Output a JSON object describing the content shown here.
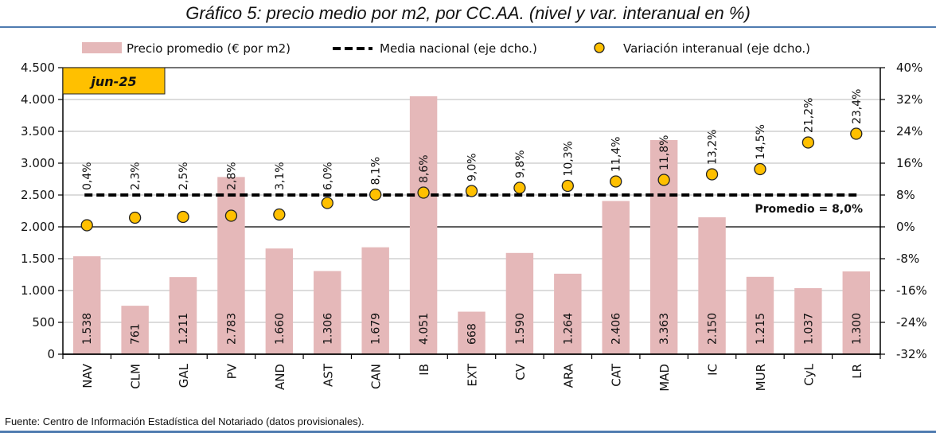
{
  "title": "Gráfico 5: precio medio por m2, por CC.AA. (nivel y var. interanual en %)",
  "source": "Fuente: Centro de Información Estadística del Notariado (datos provisionales).",
  "colors": {
    "bar": "#e5b8b9",
    "dot": "#ffc000",
    "dot_stroke": "#222222",
    "period_box": "#ffc000",
    "rule": "#4f7bb0",
    "grid": "#c8c8c8"
  },
  "chart_data": {
    "type": "bar",
    "title": "Gráfico 5: precio medio por m2, por CC.AA. (nivel y var. interanual en %)",
    "period_label": "jun-25",
    "categories": [
      "NAV",
      "CLM",
      "GAL",
      "PV",
      "AND",
      "AST",
      "CAN",
      "IB",
      "EXT",
      "CV",
      "ARA",
      "CAT",
      "MAD",
      "IC",
      "MUR",
      "CyL",
      "LR"
    ],
    "series": [
      {
        "name": "Precio promedio (€ por m2)",
        "type": "bar",
        "axis": "left",
        "values": [
          1538,
          761,
          1211,
          2783,
          1660,
          1306,
          1679,
          4051,
          668,
          1590,
          1264,
          2406,
          3363,
          2150,
          1215,
          1037,
          1300
        ],
        "labels": [
          "1.538",
          "761",
          "1.211",
          "2.783",
          "1.660",
          "1.306",
          "1.679",
          "4.051",
          "668",
          "1.590",
          "1.264",
          "2.406",
          "3.363",
          "2.150",
          "1.215",
          "1.037",
          "1.300"
        ]
      },
      {
        "name": "Media nacional (eje dcho.)",
        "type": "line",
        "axis": "right",
        "value": 8.0,
        "annotation": "Promedio = 8,0%"
      },
      {
        "name": "Variación interanual (eje dcho.)",
        "type": "scatter",
        "axis": "right",
        "values": [
          0.4,
          2.3,
          2.5,
          2.8,
          3.1,
          6.0,
          8.1,
          8.6,
          9.0,
          9.8,
          10.3,
          11.4,
          11.8,
          13.2,
          14.5,
          21.2,
          23.4
        ],
        "labels": [
          "0,4%",
          "2,3%",
          "2,5%",
          "2,8%",
          "3,1%",
          "6,0%",
          "8,1%",
          "8,6%",
          "9,0%",
          "9,8%",
          "10,3%",
          "11,4%",
          "11,8%",
          "13,2%",
          "14,5%",
          "21,2%",
          "23,4%"
        ]
      }
    ],
    "left_axis": {
      "ylim": [
        0,
        4500
      ],
      "ticks": [
        0,
        500,
        1000,
        1500,
        2000,
        2500,
        3000,
        3500,
        4000,
        4500
      ],
      "tick_labels": [
        "0",
        "500",
        "1.000",
        "1.500",
        "2.000",
        "2.500",
        "3.000",
        "3.500",
        "4.000",
        "4.500"
      ]
    },
    "right_axis": {
      "ylim": [
        -32,
        40
      ],
      "ticks": [
        -32,
        -24,
        -16,
        -8,
        0,
        8,
        16,
        24,
        32,
        40
      ],
      "tick_labels": [
        "-32%",
        "-24%",
        "-16%",
        "-8%",
        "0%",
        "8%",
        "16%",
        "24%",
        "32%",
        "40%"
      ]
    },
    "grid": true,
    "legend": "top"
  }
}
